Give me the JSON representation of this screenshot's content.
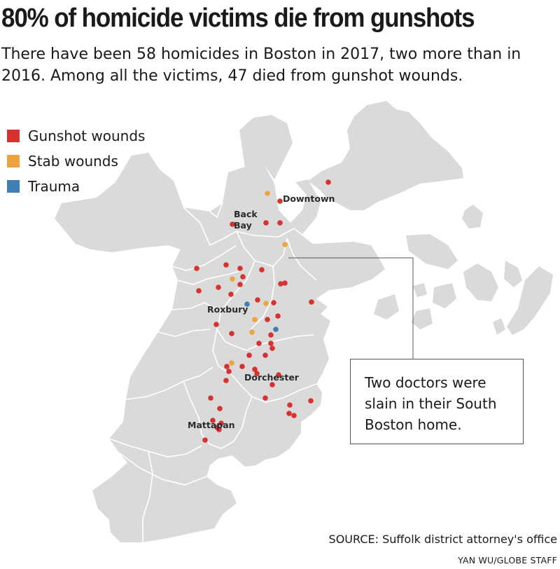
{
  "title": "80% of homicide victims die from gunshots",
  "subtitle": "There have been 58 homicides in Boston in 2017, two more than in 2016. Among all the victims, 47 died from gunshot wounds.",
  "legend": [
    {
      "label": "Gunshot wounds",
      "color": "#d63230"
    },
    {
      "label": "Stab wounds",
      "color": "#eca53e"
    },
    {
      "label": "Trauma",
      "color": "#3f7fb6"
    }
  ],
  "places": {
    "downtown": "Downtown",
    "back": "Back",
    "bay": "Bay",
    "roxbury": "Roxbury",
    "dorchester": "Dorchester",
    "mattapan": "Mattapan"
  },
  "annotation": "Two doctors were slain in their South Boston home.",
  "source": "SOURCE: Suffolk district attorney's office",
  "credit": "YAN WU/GLOBE STAFF",
  "colors": {
    "land": "#dadada",
    "boundary": "#ffffff",
    "gunshot": "#d63230",
    "stab": "#eca53e",
    "trauma": "#3f7fb6"
  }
}
